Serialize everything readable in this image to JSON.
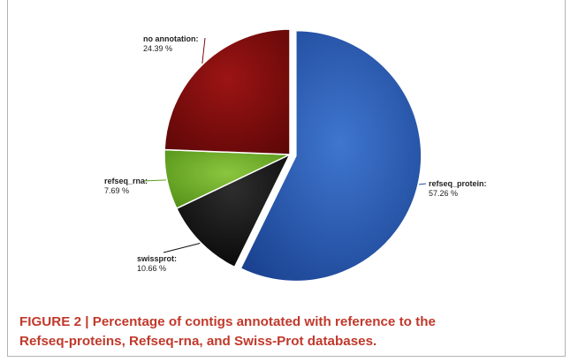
{
  "figure": {
    "caption_lines": [
      "FIGURE 2 | Percentage of contigs annotated with reference to the",
      "Refseq-proteins, Refseq-rna, and Swiss-Prot databases."
    ]
  },
  "chart_data": {
    "type": "pie",
    "slices": [
      {
        "name": "refseq_protein",
        "value": 57.26,
        "value_label": "57.26 %",
        "color": "#1f4fa3"
      },
      {
        "name": "swissprot",
        "value": 10.66,
        "value_label": "10.66 %",
        "color": "#111111"
      },
      {
        "name": "refseq_rna",
        "value": 7.69,
        "value_label": "7.69 %",
        "color": "#5e9f1c"
      },
      {
        "name": "no annotation",
        "value": 24.39,
        "value_label": "24.39 %",
        "color": "#7a0b0b"
      }
    ]
  }
}
